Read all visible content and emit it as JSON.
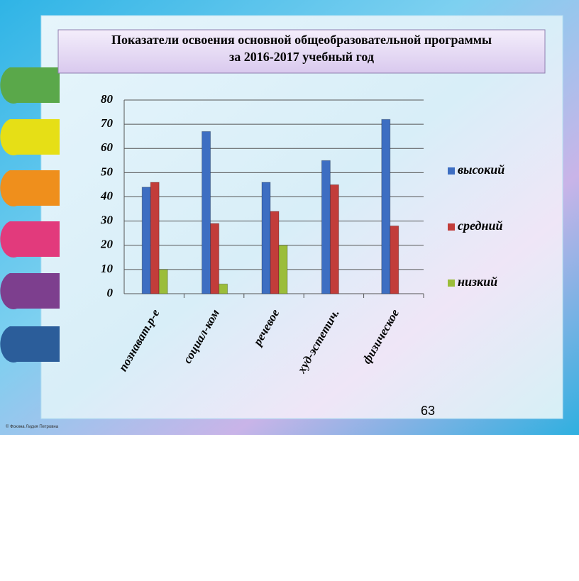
{
  "slide": {
    "page_number": "63",
    "credit": "© Фокина Лидия Петровна"
  },
  "chart_data": {
    "type": "bar",
    "title_lines": [
      "Показатели освоения основной общеобразовательной программы",
      "за 2016-2017 учебный год"
    ],
    "categories": [
      "познават.р-е",
      "социал-ком",
      "речевое",
      "худ-эстетич.",
      "физическое"
    ],
    "series": [
      {
        "name": "высокий",
        "color": "#3d6ec2",
        "values": [
          44,
          67,
          46,
          55,
          72
        ]
      },
      {
        "name": "средний",
        "color": "#c23d3a",
        "values": [
          46,
          29,
          34,
          45,
          28
        ]
      },
      {
        "name": "низкий",
        "color": "#9bbd3a",
        "values": [
          10,
          4,
          20,
          null,
          null
        ]
      }
    ],
    "ylim": [
      0,
      80
    ],
    "yticks": [
      0,
      10,
      20,
      30,
      40,
      50,
      60,
      70,
      80
    ],
    "grid": true,
    "legend": "right"
  }
}
